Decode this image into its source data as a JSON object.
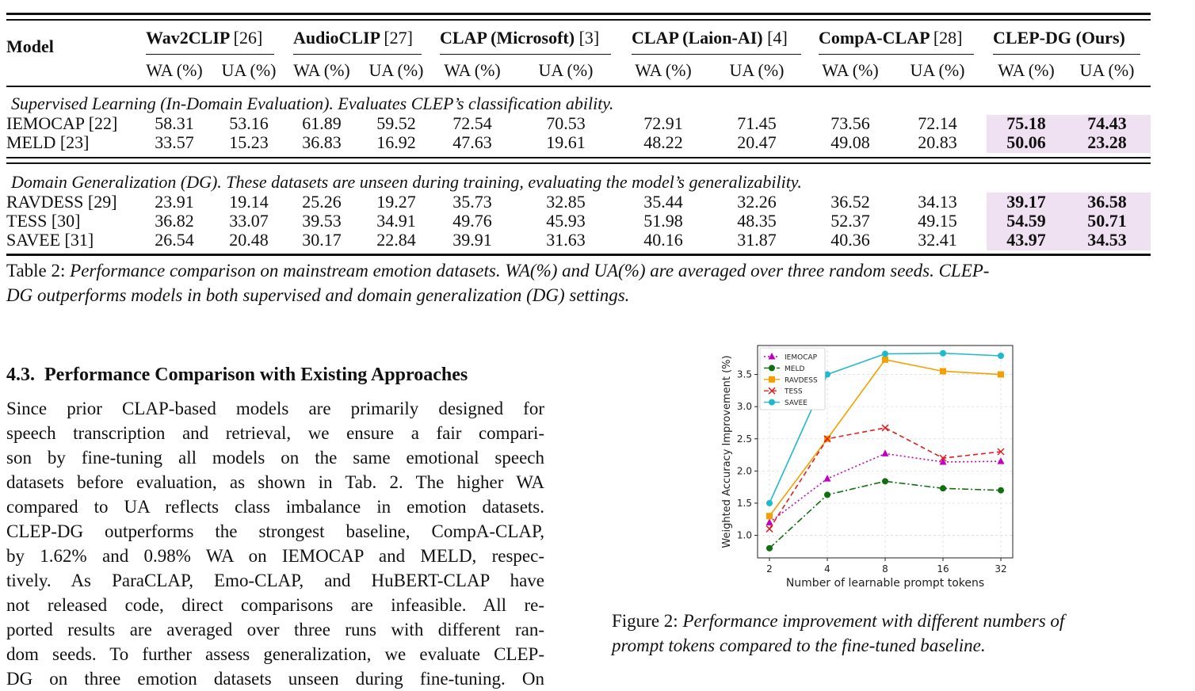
{
  "table": {
    "model_header": "Model",
    "groups": [
      {
        "name": "Wav2CLIP",
        "cite": "[26]"
      },
      {
        "name": "AudioCLIP",
        "cite": "[27]"
      },
      {
        "name": "CLAP (Microsoft)",
        "cite": "[3]"
      },
      {
        "name": "CLAP (Laion-AI)",
        "cite": "[4]"
      },
      {
        "name": "CompA-CLAP",
        "cite": "[28]"
      },
      {
        "name": "CLEP-DG (Ours)",
        "cite": ""
      }
    ],
    "wa_label": "WA (%)",
    "ua_label": "UA (%)",
    "section1_title": "Supervised Learning (In-Domain Evaluation). Evaluates CLEP’s classification ability.",
    "section1_rows": [
      {
        "label": "IEMOCAP [22]",
        "values": [
          "58.31",
          "53.16",
          "61.89",
          "59.52",
          "72.54",
          "70.53",
          "72.91",
          "71.45",
          "73.56",
          "72.14",
          "75.18",
          "74.43"
        ]
      },
      {
        "label": "MELD [23]",
        "values": [
          "33.57",
          "15.23",
          "36.83",
          "16.92",
          "47.63",
          "19.61",
          "48.22",
          "20.47",
          "49.08",
          "20.83",
          "50.06",
          "23.28"
        ]
      }
    ],
    "section2_title": "Domain Generalization (DG). These datasets are unseen during training, evaluating the model’s generalizability.",
    "section2_rows": [
      {
        "label": "RAVDESS [29]",
        "values": [
          "23.91",
          "19.14",
          "25.26",
          "19.27",
          "35.73",
          "32.85",
          "35.44",
          "32.26",
          "36.52",
          "34.13",
          "39.17",
          "36.58"
        ]
      },
      {
        "label": "TESS [30]",
        "values": [
          "36.82",
          "33.07",
          "39.53",
          "34.91",
          "49.76",
          "45.93",
          "51.98",
          "48.35",
          "52.37",
          "49.15",
          "54.59",
          "50.71"
        ]
      },
      {
        "label": "SAVEE [31]",
        "values": [
          "26.54",
          "20.48",
          "30.17",
          "22.84",
          "39.91",
          "31.63",
          "40.16",
          "31.87",
          "40.36",
          "32.41",
          "43.97",
          "34.53"
        ]
      }
    ],
    "highlight_color": "#efe0f2"
  },
  "table_caption": {
    "label": "Table 2:",
    "text_line1": "Performance comparison on mainstream emotion datasets. WA(%) and UA(%) are averaged over three random seeds. CLEP-",
    "text_line2": "DG outperforms models in both supervised and domain generalization (DG) settings."
  },
  "section": {
    "number": "4.3.",
    "title": "Performance Comparison with Existing Approaches"
  },
  "paragraph_lines": [
    "Since prior CLAP-based models are primarily designed for",
    "speech transcription and retrieval, we ensure a fair compari-",
    "son by fine-tuning all models on the same emotional speech",
    "datasets before evaluation, as shown in Tab. 2. The higher WA",
    "compared to UA reflects class imbalance in emotion datasets.",
    "CLEP-DG outperforms the strongest baseline, CompA-CLAP,",
    "by 1.62% and 0.98% WA on IEMOCAP and MELD, respec-",
    "tively.  As ParaCLAP, Emo-CLAP, and HuBERT-CLAP have",
    "not released code, direct comparisons are infeasible.  All re-",
    "ported results are averaged over three runs with different ran-",
    "dom seeds. To further assess generalization, we evaluate CLEP-",
    "DG on three emotion datasets unseen during fine-tuning.  On"
  ],
  "figure_caption": {
    "label": "Figure 2:",
    "text_line1": "Performance improvement with different numbers of",
    "text_line2": "prompt tokens compared to the fine-tuned baseline."
  },
  "chart_data": {
    "type": "line",
    "xlabel": "Number of learnable prompt tokens",
    "ylabel": "Weighted Accuracy Improvement (%)",
    "categories": [
      "2",
      "4",
      "8",
      "16",
      "32"
    ],
    "ylim": [
      0.65,
      3.95
    ],
    "yticks": [
      "1.0",
      "1.5",
      "2.0",
      "2.5",
      "3.0",
      "3.5"
    ],
    "grid": true,
    "legend_position": "top-left",
    "series": [
      {
        "name": "IEMOCAP",
        "values": [
          1.2,
          1.88,
          2.27,
          2.14,
          2.15
        ],
        "color": "#c000c0",
        "marker": "triangle",
        "dash": "dotted"
      },
      {
        "name": "MELD",
        "values": [
          0.8,
          1.63,
          1.84,
          1.73,
          1.7
        ],
        "color": "#107010",
        "marker": "circle",
        "dash": "dashdot"
      },
      {
        "name": "RAVDESS",
        "values": [
          1.3,
          2.5,
          3.73,
          3.55,
          3.5
        ],
        "color": "#f5a000",
        "marker": "square",
        "dash": "solid"
      },
      {
        "name": "TESS",
        "values": [
          1.1,
          2.5,
          2.67,
          2.2,
          2.3
        ],
        "color": "#e02020",
        "marker": "x",
        "dash": "dashed"
      },
      {
        "name": "SAVEE",
        "values": [
          1.5,
          3.5,
          3.82,
          3.83,
          3.79
        ],
        "color": "#20b8cc",
        "marker": "circle",
        "dash": "solid"
      }
    ]
  }
}
